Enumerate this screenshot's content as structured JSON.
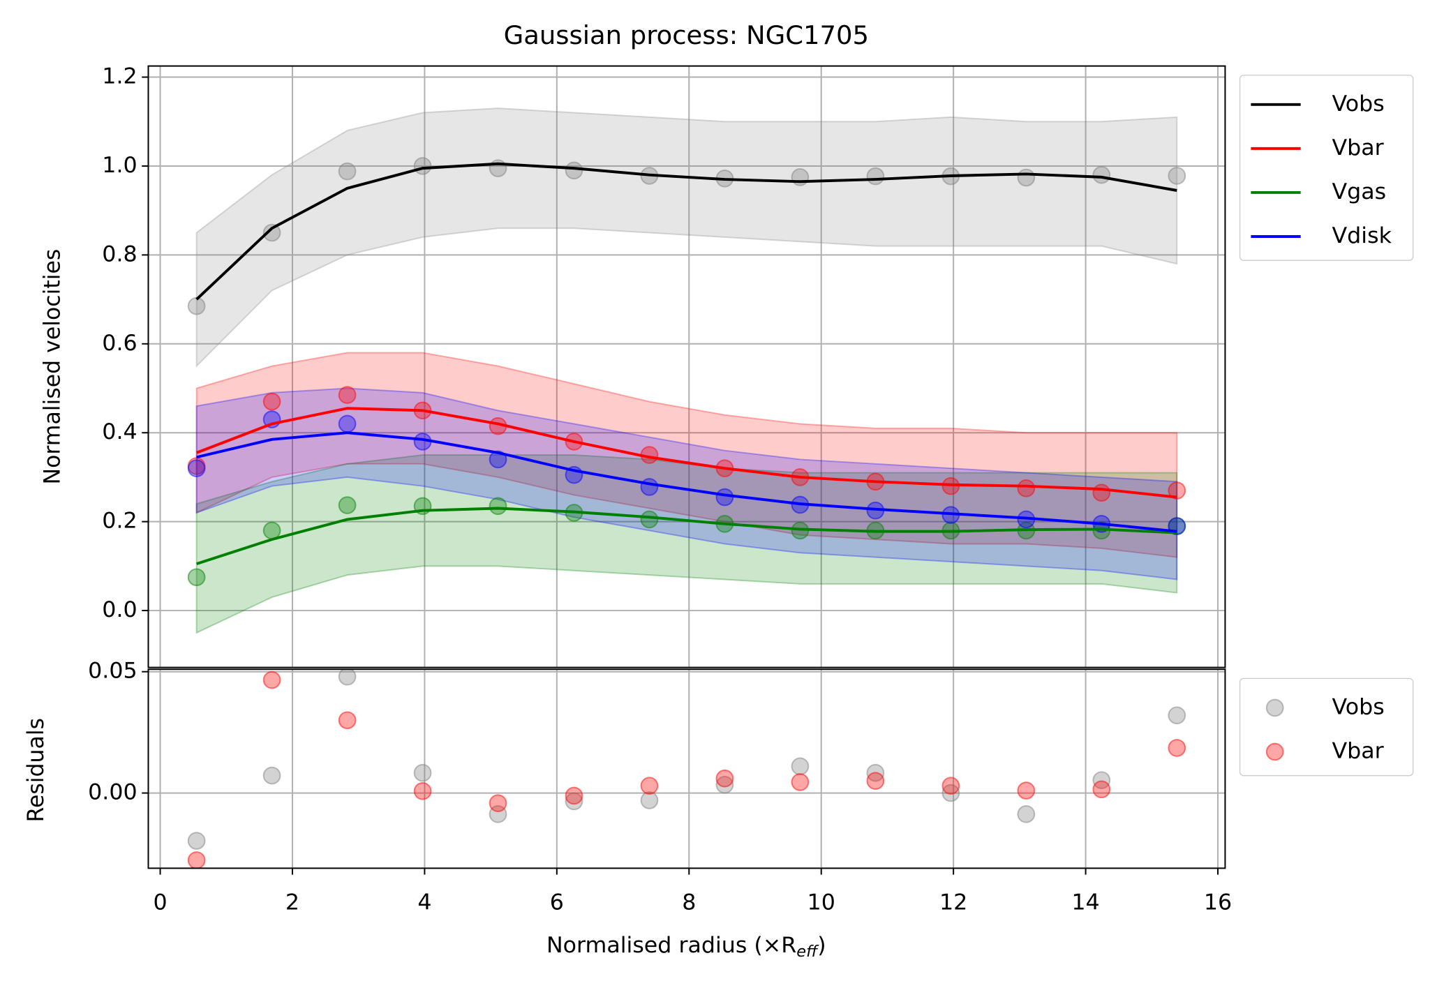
{
  "chart_data": [
    {
      "type": "line",
      "title": "Gaussian process: NGC1705",
      "ylabel": "Normalised velocities",
      "x": [
        0.55,
        1.69,
        2.83,
        3.97,
        5.11,
        6.26,
        7.4,
        8.54,
        9.68,
        10.82,
        11.96,
        13.1,
        14.24,
        15.38
      ],
      "xlim": [
        -0.18,
        16.11
      ],
      "xticks": [
        0,
        2,
        4,
        6,
        8,
        10,
        12,
        14,
        16
      ],
      "ylim": [
        -0.128,
        1.225
      ],
      "yticks": [
        {
          "value": 0,
          "label": "0.0"
        },
        0.2,
        0.4,
        0.6,
        0.8,
        {
          "value": 1,
          "label": "1.0"
        },
        1.2
      ],
      "grid": true,
      "legend": "outside upper right",
      "series": [
        {
          "name": "Vobs",
          "color": "#000000",
          "band_color": "#808080",
          "values": [
            0.7,
            0.86,
            0.95,
            0.995,
            1.005,
            0.995,
            0.98,
            0.97,
            0.965,
            0.97,
            0.978,
            0.982,
            0.975,
            0.945
          ],
          "points": [
            0.685,
            0.85,
            0.988,
            1.0,
            0.995,
            0.99,
            0.978,
            0.972,
            0.975,
            0.977,
            0.977,
            0.974,
            0.98,
            0.978
          ],
          "lower": [
            0.55,
            0.72,
            0.8,
            0.84,
            0.86,
            0.86,
            0.85,
            0.84,
            0.83,
            0.82,
            0.82,
            0.82,
            0.82,
            0.78
          ],
          "upper": [
            0.85,
            0.98,
            1.08,
            1.12,
            1.13,
            1.12,
            1.11,
            1.1,
            1.1,
            1.1,
            1.11,
            1.1,
            1.1,
            1.11
          ]
        },
        {
          "name": "Vbar",
          "color": "#ff0000",
          "band_color": "#ff0000",
          "values": [
            0.355,
            0.42,
            0.455,
            0.45,
            0.42,
            0.38,
            0.345,
            0.32,
            0.3,
            0.29,
            0.283,
            0.28,
            0.273,
            0.255
          ],
          "points": [
            0.325,
            0.47,
            0.485,
            0.45,
            0.415,
            0.38,
            0.35,
            0.32,
            0.3,
            0.29,
            0.28,
            0.275,
            0.265,
            0.27
          ],
          "lower": [
            0.22,
            0.3,
            0.33,
            0.33,
            0.3,
            0.26,
            0.23,
            0.2,
            0.17,
            0.16,
            0.15,
            0.15,
            0.14,
            0.12
          ],
          "upper": [
            0.5,
            0.55,
            0.58,
            0.58,
            0.55,
            0.51,
            0.47,
            0.44,
            0.42,
            0.41,
            0.41,
            0.4,
            0.4,
            0.4
          ]
        },
        {
          "name": "Vgas",
          "color": "#008000",
          "band_color": "#008000",
          "values": [
            0.105,
            0.16,
            0.205,
            0.225,
            0.23,
            0.222,
            0.21,
            0.195,
            0.183,
            0.178,
            0.178,
            0.182,
            0.183,
            0.175
          ],
          "points": [
            0.075,
            0.18,
            0.237,
            0.235,
            0.235,
            0.22,
            0.205,
            0.195,
            0.18,
            0.18,
            0.18,
            0.18,
            0.18,
            0.19
          ],
          "lower": [
            -0.05,
            0.03,
            0.08,
            0.1,
            0.1,
            0.09,
            0.08,
            0.07,
            0.06,
            0.06,
            0.06,
            0.06,
            0.06,
            0.04
          ],
          "upper": [
            0.24,
            0.29,
            0.33,
            0.35,
            0.35,
            0.35,
            0.34,
            0.32,
            0.31,
            0.31,
            0.31,
            0.31,
            0.31,
            0.31
          ]
        },
        {
          "name": "Vdisk",
          "color": "#0000ff",
          "band_color": "#0000ff",
          "values": [
            0.345,
            0.385,
            0.4,
            0.385,
            0.355,
            0.315,
            0.285,
            0.26,
            0.24,
            0.228,
            0.218,
            0.208,
            0.195,
            0.178
          ],
          "points": [
            0.32,
            0.43,
            0.42,
            0.38,
            0.34,
            0.305,
            0.278,
            0.255,
            0.238,
            0.225,
            0.215,
            0.205,
            0.195,
            0.19
          ],
          "lower": [
            0.22,
            0.28,
            0.3,
            0.28,
            0.25,
            0.21,
            0.18,
            0.15,
            0.13,
            0.12,
            0.11,
            0.1,
            0.09,
            0.07
          ],
          "upper": [
            0.46,
            0.49,
            0.5,
            0.49,
            0.45,
            0.42,
            0.39,
            0.36,
            0.34,
            0.33,
            0.32,
            0.31,
            0.3,
            0.29
          ]
        }
      ]
    },
    {
      "type": "scatter",
      "xlabel": "Normalised radius (×R",
      "xlabel_sub": "eff",
      "xlabel_end": ")",
      "ylabel": "Residuals",
      "x": [
        0.55,
        1.69,
        2.83,
        3.97,
        5.11,
        6.26,
        7.4,
        8.54,
        9.68,
        10.82,
        11.96,
        13.1,
        14.24,
        15.38
      ],
      "xlim": [
        -0.18,
        16.11
      ],
      "xticks": [
        0,
        2,
        4,
        6,
        8,
        10,
        12,
        14,
        16
      ],
      "ylim": [
        -0.031,
        0.051
      ],
      "yticks": [
        {
          "value": 0,
          "label": "0.00"
        },
        {
          "value": 0.05,
          "label": "0.05"
        }
      ],
      "grid": true,
      "legend": "outside upper right",
      "series": [
        {
          "name": "Vobs",
          "color": "#808080",
          "values": [
            -0.0197,
            0.0072,
            0.048,
            0.0083,
            -0.0087,
            -0.0034,
            -0.003,
            0.0034,
            0.011,
            0.0083,
            0.0,
            -0.0087,
            0.0053,
            0.032
          ]
        },
        {
          "name": "Vbar",
          "color": "#ff0000",
          "values": [
            -0.0277,
            0.0466,
            0.03,
            0.0008,
            -0.0042,
            -0.0011,
            0.003,
            0.006,
            0.0045,
            0.005,
            0.003,
            0.001,
            0.0015,
            0.0186
          ]
        }
      ]
    }
  ]
}
